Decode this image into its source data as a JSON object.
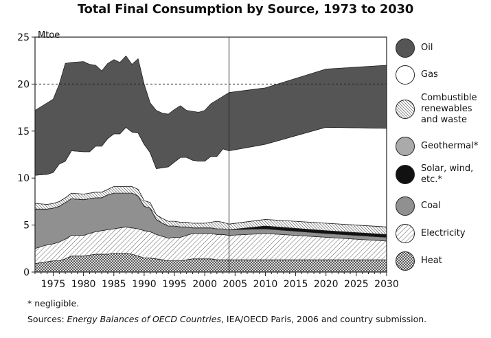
{
  "chart_data": {
    "type": "area",
    "title": "Total Final Consumption by Source, 1973 to 2030",
    "ylabel": "Mtoe",
    "xlabel": "",
    "xlim": [
      1972,
      2030
    ],
    "ylim": [
      0,
      25
    ],
    "x_ticks": [
      1975,
      1980,
      1985,
      1990,
      1995,
      2000,
      2005,
      2010,
      2015,
      2020,
      2025,
      2030
    ],
    "y_ticks": [
      0,
      5,
      10,
      15,
      20,
      25
    ],
    "reference_line": {
      "y": 20,
      "style": "dashed"
    },
    "projection_divider_year": 2004,
    "grid": false,
    "legend_position": "right",
    "x": [
      1972,
      1974,
      1975,
      1976,
      1977,
      1978,
      1980,
      1981,
      1982,
      1983,
      1984,
      1985,
      1986,
      1987,
      1988,
      1989,
      1990,
      1991,
      1992,
      1993,
      1994,
      1995,
      1996,
      1997,
      1998,
      1999,
      2000,
      2001,
      2002,
      2003,
      2004,
      2010,
      2020,
      2030
    ],
    "series": [
      {
        "name": "Heat",
        "pattern": "crosshatch",
        "values": [
          0.9,
          1.1,
          1.2,
          1.2,
          1.4,
          1.7,
          1.7,
          1.8,
          1.9,
          1.9,
          1.9,
          2.0,
          2.0,
          2.0,
          1.9,
          1.7,
          1.5,
          1.5,
          1.4,
          1.3,
          1.2,
          1.2,
          1.2,
          1.3,
          1.4,
          1.4,
          1.4,
          1.4,
          1.3,
          1.3,
          1.3,
          1.3,
          1.3,
          1.3
        ]
      },
      {
        "name": "Electricity",
        "pattern": "diagonal-light",
        "values": [
          1.6,
          1.8,
          1.8,
          2.0,
          2.1,
          2.2,
          2.2,
          2.3,
          2.4,
          2.5,
          2.6,
          2.6,
          2.7,
          2.8,
          2.8,
          2.9,
          2.9,
          2.8,
          2.6,
          2.5,
          2.4,
          2.5,
          2.5,
          2.6,
          2.7,
          2.7,
          2.7,
          2.7,
          2.7,
          2.7,
          2.6,
          2.8,
          2.4,
          2.0
        ]
      },
      {
        "name": "Coal",
        "color": "#909090",
        "values": [
          4.2,
          3.8,
          3.8,
          3.8,
          3.9,
          3.9,
          3.8,
          3.7,
          3.6,
          3.5,
          3.7,
          3.8,
          3.7,
          3.6,
          3.7,
          3.5,
          2.6,
          2.5,
          1.6,
          1.4,
          1.3,
          1.2,
          1.1,
          0.9,
          0.6,
          0.6,
          0.6,
          0.6,
          0.6,
          0.6,
          0.6,
          0.5,
          0.4,
          0.4
        ]
      },
      {
        "name": "Solar, wind, etc.*",
        "color": "#111111",
        "values": [
          0,
          0,
          0,
          0,
          0,
          0,
          0,
          0,
          0,
          0,
          0,
          0,
          0,
          0,
          0,
          0,
          0,
          0,
          0,
          0,
          0,
          0,
          0,
          0,
          0,
          0,
          0,
          0,
          0,
          0,
          0,
          0.3,
          0.3,
          0.3
        ]
      },
      {
        "name": "Geothermal*",
        "color": "#aaaaaa",
        "values": [
          0,
          0,
          0,
          0,
          0,
          0,
          0,
          0,
          0,
          0,
          0,
          0,
          0,
          0,
          0,
          0,
          0,
          0,
          0,
          0,
          0,
          0,
          0,
          0,
          0,
          0,
          0,
          0,
          0,
          0,
          0,
          0,
          0,
          0
        ]
      },
      {
        "name": "Combustible renewables and waste",
        "pattern": "diagonal-dense",
        "values": [
          0.6,
          0.5,
          0.5,
          0.5,
          0.5,
          0.6,
          0.6,
          0.6,
          0.6,
          0.6,
          0.6,
          0.7,
          0.7,
          0.7,
          0.7,
          0.7,
          0.6,
          0.6,
          0.5,
          0.5,
          0.5,
          0.5,
          0.5,
          0.5,
          0.5,
          0.5,
          0.5,
          0.6,
          0.8,
          0.7,
          0.6,
          0.7,
          0.8,
          0.8
        ]
      },
      {
        "name": "Gas",
        "color": "#ffffff",
        "values": [
          3.0,
          3.2,
          3.3,
          4.0,
          3.9,
          4.5,
          4.5,
          4.4,
          4.9,
          4.9,
          5.4,
          5.6,
          5.6,
          6.3,
          5.8,
          6.0,
          6.0,
          5.3,
          4.9,
          5.4,
          5.8,
          6.3,
          6.9,
          6.9,
          6.7,
          6.6,
          6.6,
          7.0,
          6.9,
          7.8,
          7.8,
          8.0,
          10.2,
          10.5
        ]
      },
      {
        "name": "Oil",
        "color": "#555555",
        "values": [
          6.9,
          7.6,
          7.8,
          8.5,
          10.4,
          9.4,
          9.6,
          9.3,
          8.6,
          8.0,
          8.0,
          7.9,
          7.6,
          7.6,
          7.2,
          7.9,
          6.4,
          5.3,
          6.2,
          5.8,
          5.6,
          5.6,
          5.5,
          5.0,
          5.2,
          5.2,
          5.4,
          5.6,
          6.0,
          5.6,
          6.2,
          6.0,
          6.2,
          6.7
        ]
      }
    ]
  },
  "legend": [
    {
      "label": "Oil",
      "key": "oil",
      "icon": "oil-swatch"
    },
    {
      "label": "Gas",
      "key": "gas",
      "icon": "gas-swatch"
    },
    {
      "label": "Combustible\nrenewables\nand waste",
      "key": "crw",
      "icon": "combustible-renewables-swatch"
    },
    {
      "label": "Geothermal*",
      "key": "geo",
      "icon": "geothermal-swatch"
    },
    {
      "label": "Solar, wind,\netc.*",
      "key": "solar",
      "icon": "solar-wind-swatch"
    },
    {
      "label": "Coal",
      "key": "coal",
      "icon": "coal-swatch"
    },
    {
      "label": "Electricity",
      "key": "elec",
      "icon": "electricity-swatch"
    },
    {
      "label": "Heat",
      "key": "heat",
      "icon": "heat-swatch"
    }
  ],
  "footnote": "* negligible.",
  "sources": {
    "prefix": "Sources: ",
    "italic": "Energy Balances of OECD Countries",
    "suffix": ", IEA/OECD Paris, 2006 and country submission."
  }
}
